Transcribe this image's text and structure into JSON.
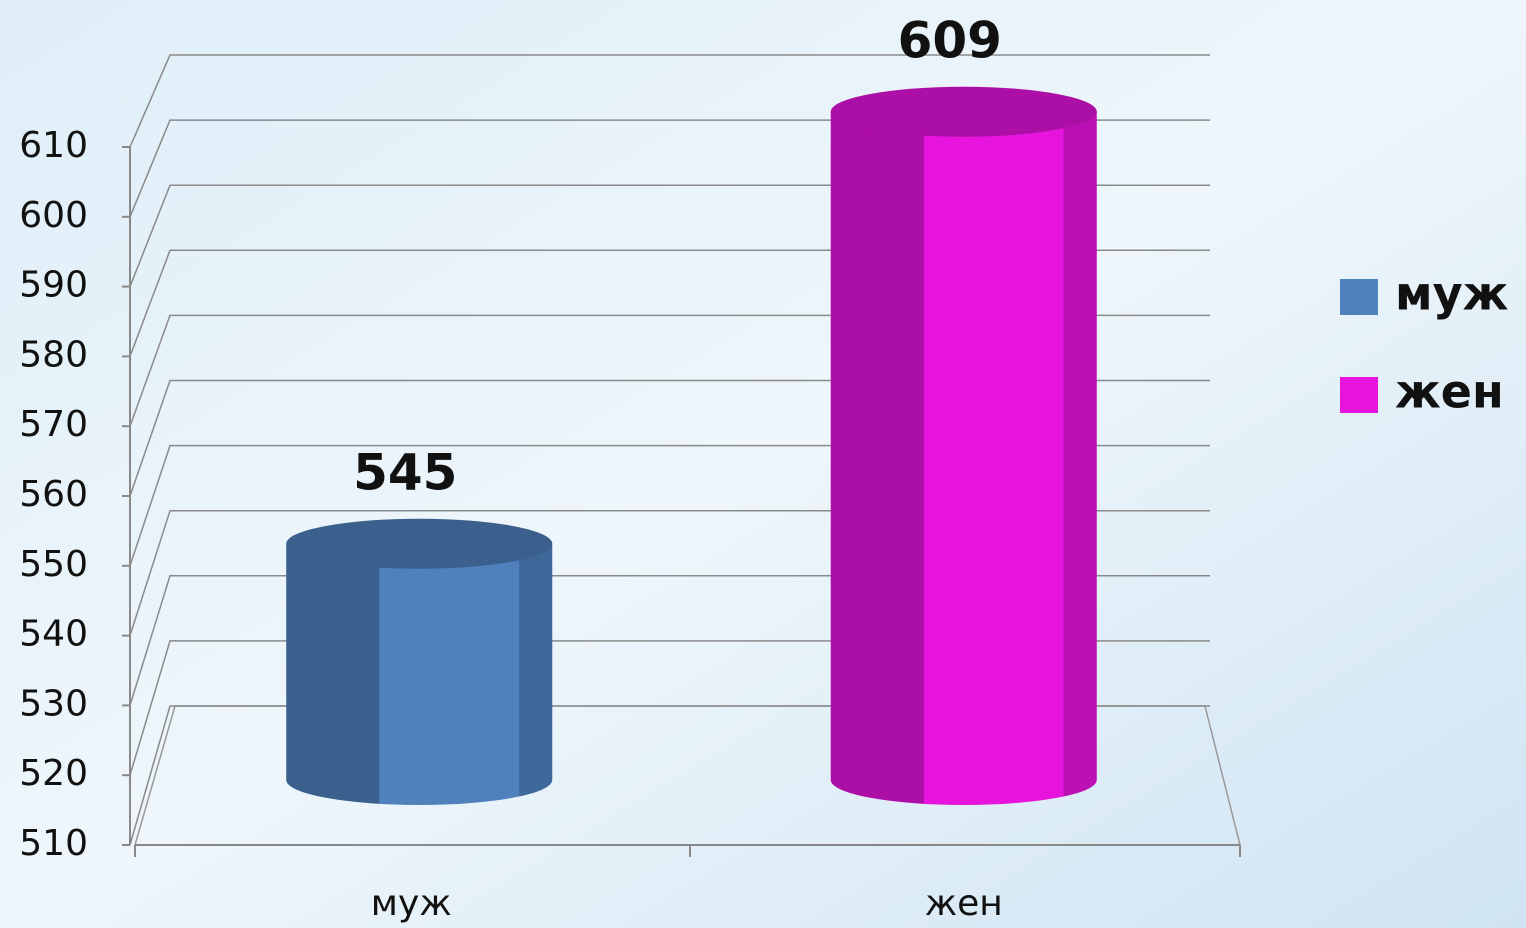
{
  "chart_data": {
    "type": "bar3d-cylinder",
    "categories": [
      "муж",
      "жен"
    ],
    "series": [
      {
        "name": "муж",
        "color": "#4f81bd",
        "values": [
          545,
          null
        ]
      },
      {
        "name": "жен",
        "color": "#e614dc",
        "values": [
          null,
          609
        ]
      }
    ],
    "ylim": [
      510,
      610
    ],
    "yticks": [
      510,
      520,
      530,
      540,
      550,
      560,
      570,
      580,
      590,
      600,
      610
    ],
    "grid": true,
    "legend": "right"
  }
}
